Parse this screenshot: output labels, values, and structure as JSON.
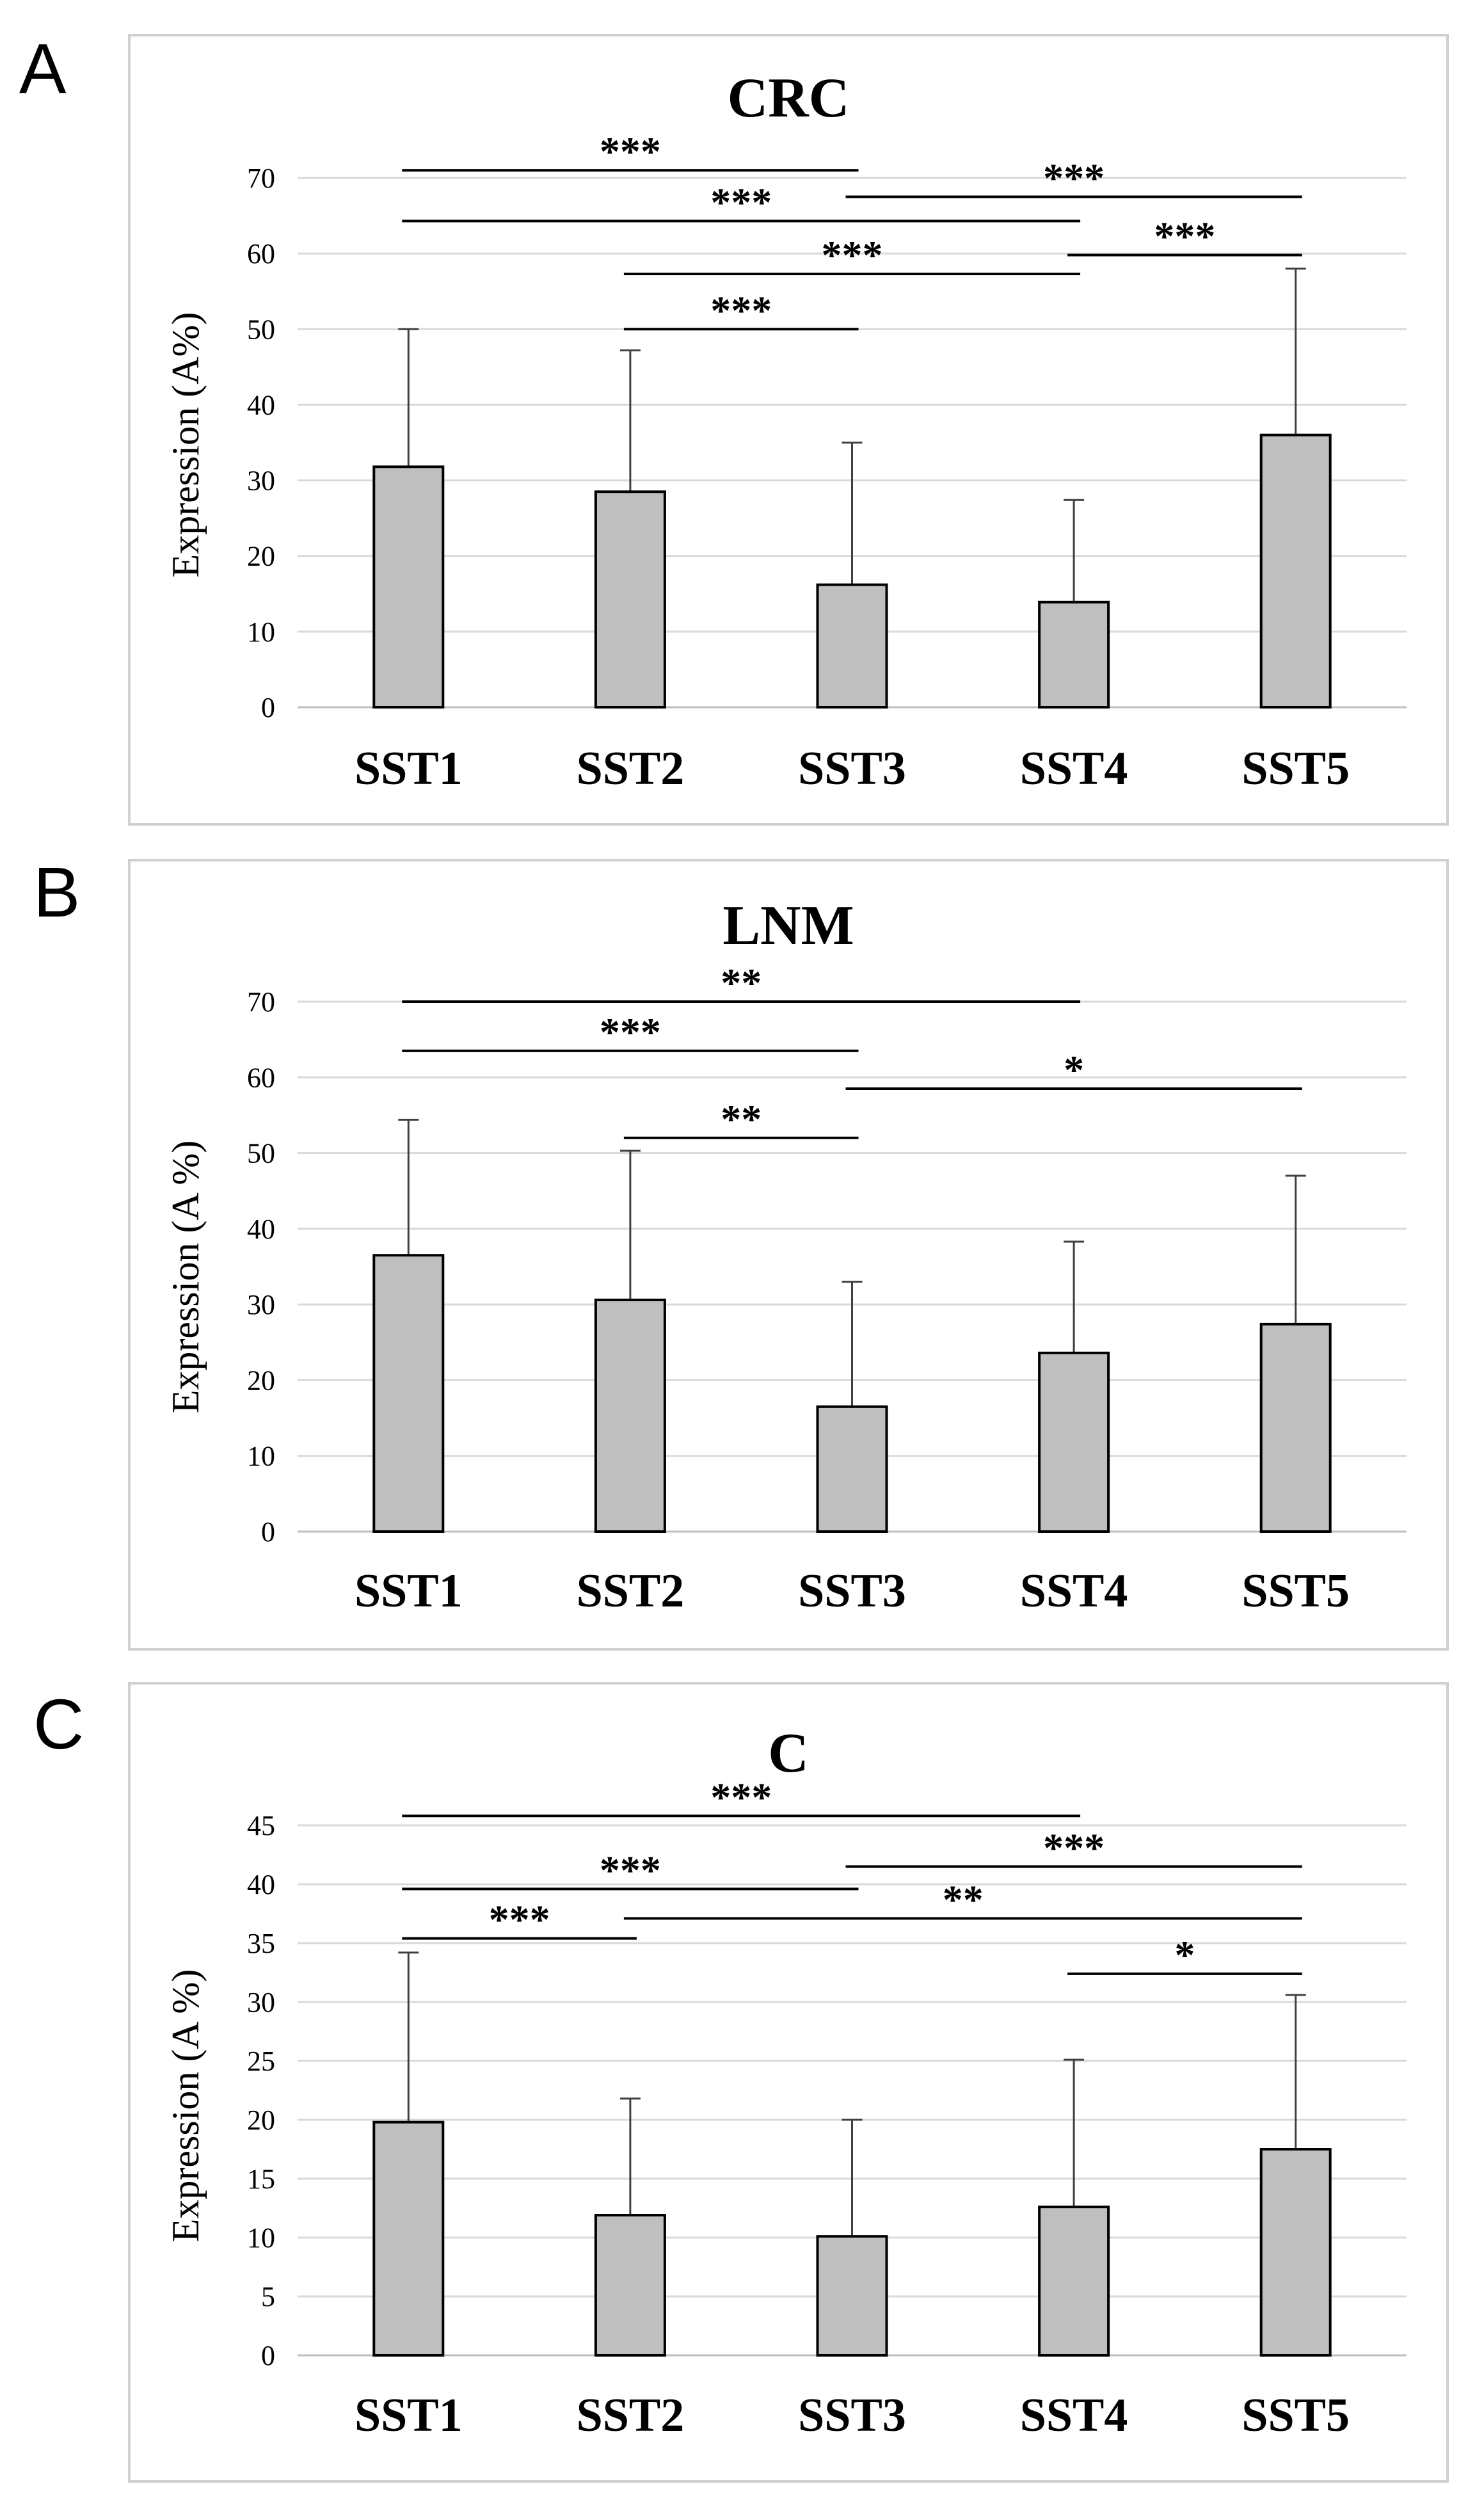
{
  "chart_data": [
    {
      "type": "bar",
      "panel_label": "A",
      "title": "CRC",
      "xlabel": "",
      "ylabel": "Expression (A%)",
      "ylim": [
        0,
        70
      ],
      "yticks": [
        0,
        10,
        20,
        30,
        40,
        50,
        60,
        70
      ],
      "categories": [
        "SST1",
        "SST2",
        "SST3",
        "SST4",
        "SST5"
      ],
      "values": [
        31.8,
        28.5,
        16.2,
        13.9,
        36.0
      ],
      "error_upper": [
        50.0,
        47.2,
        35.0,
        27.4,
        58.0
      ],
      "significance": [
        {
          "from": 0,
          "to": 2,
          "y": 71,
          "label": "***"
        },
        {
          "from": 2,
          "to": 4,
          "y": 67.5,
          "label": "***"
        },
        {
          "from": 0,
          "to": 3,
          "y": 64.3,
          "label": "***"
        },
        {
          "from": 3,
          "to": 4,
          "y": 59.8,
          "label": "***"
        },
        {
          "from": 1,
          "to": 3,
          "y": 57.3,
          "label": "***"
        },
        {
          "from": 1,
          "to": 2,
          "y": 50.0,
          "label": "***"
        }
      ],
      "colors": {
        "bar": "#bfbfbf",
        "bar_edge": "#000000",
        "grid": "#d9d9d9",
        "frame": "#d0d0d0"
      }
    },
    {
      "type": "bar",
      "panel_label": "B",
      "title": "LNM",
      "xlabel": "",
      "ylabel": "Expression (A %)",
      "ylim": [
        0,
        70
      ],
      "yticks": [
        0,
        10,
        20,
        30,
        40,
        50,
        60,
        70
      ],
      "categories": [
        "SST1",
        "SST2",
        "SST3",
        "SST4",
        "SST5"
      ],
      "values": [
        36.5,
        30.6,
        16.5,
        23.6,
        27.4
      ],
      "error_upper": [
        54.4,
        50.3,
        33.0,
        38.3,
        47.0
      ],
      "significance": [
        {
          "from": 0,
          "to": 3,
          "y": 70,
          "label": "**"
        },
        {
          "from": 0,
          "to": 2,
          "y": 63.5,
          "label": "***"
        },
        {
          "from": 2,
          "to": 4,
          "y": 58.5,
          "label": "*"
        },
        {
          "from": 1,
          "to": 2,
          "y": 52.0,
          "label": "**"
        }
      ],
      "colors": {
        "bar": "#bfbfbf",
        "bar_edge": "#000000",
        "grid": "#d9d9d9",
        "frame": "#d0d0d0"
      }
    },
    {
      "type": "bar",
      "panel_label": "C",
      "title": "C",
      "xlabel": "",
      "ylabel": "Expression (A %)",
      "ylim": [
        0,
        45
      ],
      "yticks": [
        0,
        5,
        10,
        15,
        20,
        25,
        30,
        35,
        40,
        45
      ],
      "categories": [
        "SST1",
        "SST2",
        "SST3",
        "SST4",
        "SST5"
      ],
      "values": [
        19.8,
        11.9,
        10.1,
        12.6,
        17.5
      ],
      "error_upper": [
        34.2,
        21.8,
        20.0,
        25.1,
        30.6
      ],
      "significance": [
        {
          "from": 0,
          "to": 3,
          "y": 45.8,
          "label": "***"
        },
        {
          "from": 2,
          "to": 4,
          "y": 41.5,
          "label": "***"
        },
        {
          "from": 0,
          "to": 2,
          "y": 39.6,
          "label": "***"
        },
        {
          "from": 1,
          "to": 4,
          "y": 37.1,
          "label": "**"
        },
        {
          "from": 0,
          "to": 1,
          "y": 35.4,
          "label": "***"
        },
        {
          "from": 3,
          "to": 4,
          "y": 32.4,
          "label": "*"
        }
      ],
      "colors": {
        "bar": "#bfbfbf",
        "bar_edge": "#000000",
        "grid": "#d9d9d9",
        "frame": "#d0d0d0"
      }
    }
  ]
}
